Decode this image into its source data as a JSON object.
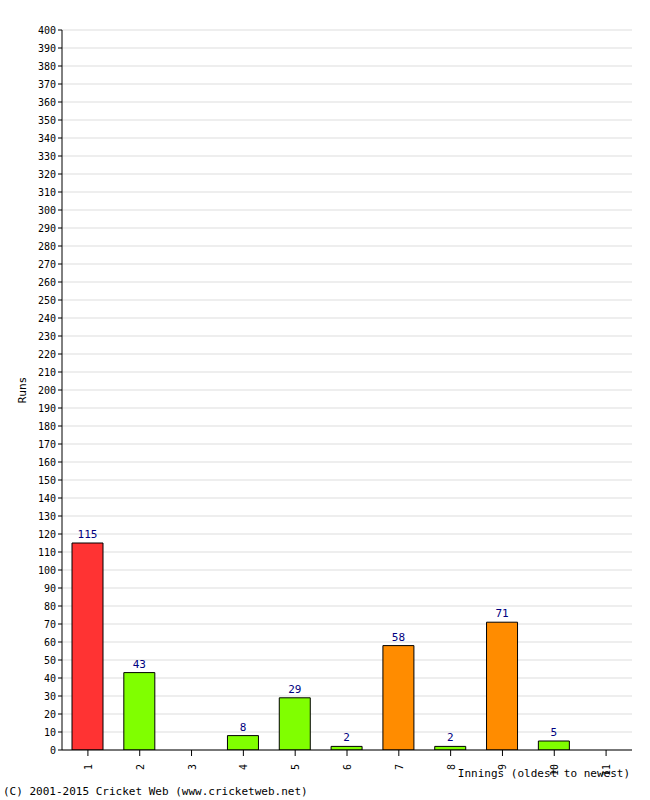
{
  "chart_data": {
    "type": "bar",
    "categories": [
      "1",
      "2",
      "3",
      "4",
      "5",
      "6",
      "7",
      "8",
      "9",
      "10",
      "11"
    ],
    "values": [
      115,
      43,
      0,
      8,
      29,
      2,
      58,
      2,
      71,
      5,
      0
    ],
    "colors": [
      "#ff3333",
      "#80ff00",
      "#80ff00",
      "#80ff00",
      "#80ff00",
      "#80ff00",
      "#ff8c00",
      "#80ff00",
      "#ff8c00",
      "#80ff00",
      "#80ff00"
    ],
    "x_label": "Innings (oldest to newest)",
    "y_label": "Runs",
    "annotation": "(C) 2001-2015 Cricket Web (www.cricketweb.net)",
    "ylim": [
      0,
      400
    ],
    "yticks": [
      0,
      10,
      20,
      30,
      40,
      50,
      60,
      70,
      80,
      90,
      100,
      110,
      120,
      130,
      140,
      150,
      160,
      170,
      180,
      190,
      200,
      210,
      220,
      230,
      240,
      250,
      260,
      270,
      280,
      290,
      300,
      310,
      320,
      330,
      340,
      350,
      360,
      370,
      380,
      390,
      400
    ],
    "grid": true,
    "data_labels": true
  }
}
